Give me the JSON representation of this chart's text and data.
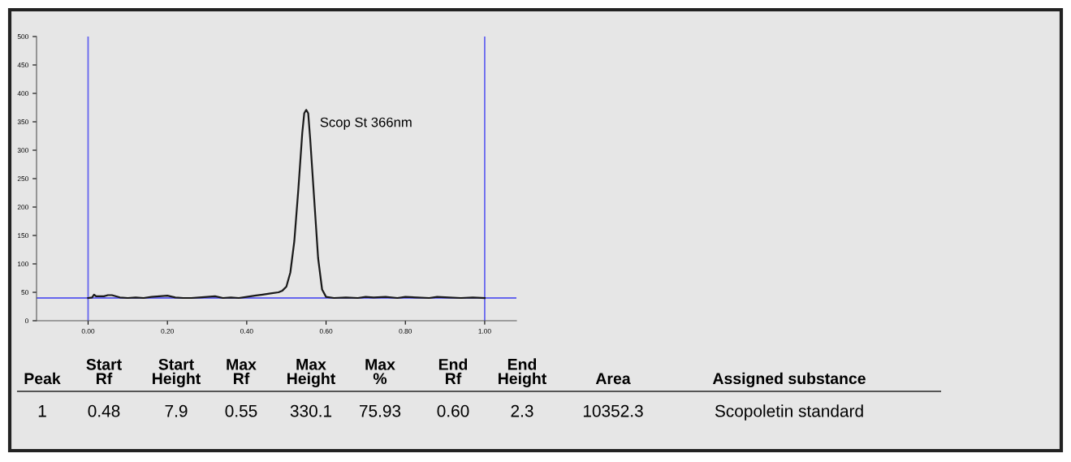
{
  "chart_data": {
    "type": "line",
    "x": [
      0.0,
      0.01,
      0.015,
      0.02,
      0.04,
      0.05,
      0.06,
      0.08,
      0.1,
      0.12,
      0.14,
      0.16,
      0.18,
      0.2,
      0.22,
      0.24,
      0.26,
      0.28,
      0.3,
      0.32,
      0.34,
      0.36,
      0.38,
      0.4,
      0.42,
      0.44,
      0.46,
      0.48,
      0.49,
      0.5,
      0.51,
      0.52,
      0.53,
      0.54,
      0.545,
      0.55,
      0.555,
      0.56,
      0.57,
      0.58,
      0.59,
      0.6,
      0.62,
      0.65,
      0.68,
      0.7,
      0.72,
      0.75,
      0.78,
      0.8,
      0.83,
      0.86,
      0.88,
      0.91,
      0.94,
      0.97,
      1.0
    ],
    "series": [
      {
        "color": "#1a1a1a",
        "values": [
          40,
          41,
          46,
          43,
          43,
          45,
          45,
          41,
          40,
          41,
          40,
          42,
          43,
          44,
          41,
          40,
          40,
          41,
          42,
          43,
          40,
          41,
          40,
          42,
          44,
          46,
          48,
          50,
          53,
          60,
          85,
          140,
          230,
          330,
          365,
          371,
          365,
          320,
          215,
          110,
          55,
          42,
          40,
          41,
          40,
          42,
          41,
          42,
          40,
          42,
          41,
          40,
          42,
          41,
          40,
          41,
          40
        ]
      }
    ],
    "xlim": [
      -0.13,
      1.08
    ],
    "ylim": [
      0,
      500
    ],
    "xticks": [
      {
        "value": 0.0,
        "label": "0.00"
      },
      {
        "value": 0.2,
        "label": "0.20"
      },
      {
        "value": 0.4,
        "label": "0.40"
      },
      {
        "value": 0.6,
        "label": "0.60"
      },
      {
        "value": 0.8,
        "label": "0.80"
      },
      {
        "value": 1.0,
        "label": "1.00"
      }
    ],
    "yticks": [
      0,
      50,
      100,
      150,
      200,
      250,
      300,
      350,
      400,
      450,
      500
    ],
    "grid": false,
    "legend": false,
    "marker": "none",
    "line_style": "solid",
    "ref_lines": [
      {
        "axis": "x",
        "value": 0.0,
        "color": "#6666ee"
      },
      {
        "axis": "x",
        "value": 1.0,
        "color": "#6666ee"
      },
      {
        "axis": "y",
        "value": 40,
        "color": "#6666ee"
      }
    ],
    "annotations": [
      {
        "text": "Scop St 366nm",
        "x": 0.55,
        "y": 371
      },
      "Peak",
      "Start\nRf",
      "Start\nHeight",
      "Max\nRf",
      "Max\nHeight",
      "Max\n%",
      "End\nRf",
      "End\nHeight",
      "Area",
      "Assigned substance",
      "1",
      "0.48",
      "7.9",
      "0.55",
      "330.1",
      "75.93",
      "0.60",
      "2.3",
      "10352.3",
      "Scopoletin standard"
    ]
  }
}
